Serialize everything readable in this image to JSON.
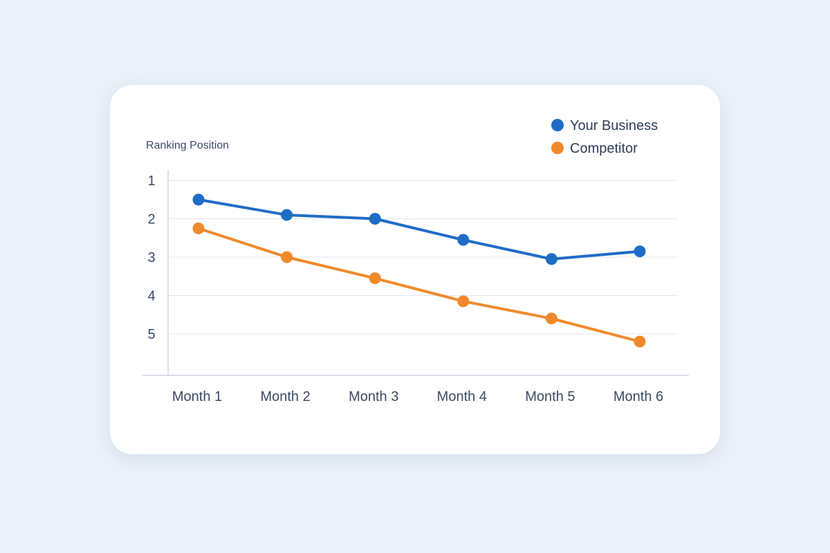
{
  "chart_data": {
    "type": "line",
    "ylabel": "Ranking Position",
    "xlabel": "",
    "categories": [
      "Month 1",
      "Month 2",
      "Month 3",
      "Month 4",
      "Month 5",
      "Month 6"
    ],
    "y_ticks": [
      "1",
      "2",
      "3",
      "4",
      "5"
    ],
    "ylim": [
      1,
      6
    ],
    "y_inverted": true,
    "grid": true,
    "legend_position": "top-right",
    "series": [
      {
        "name": "Your Business",
        "color": "#1f6cc7",
        "values": [
          1.5,
          1.9,
          2.0,
          2.55,
          3.05,
          2.85
        ]
      },
      {
        "name": "Competitor",
        "color": "#ef8a2c",
        "values": [
          2.25,
          3.0,
          3.55,
          4.15,
          4.6,
          5.2
        ]
      }
    ]
  }
}
